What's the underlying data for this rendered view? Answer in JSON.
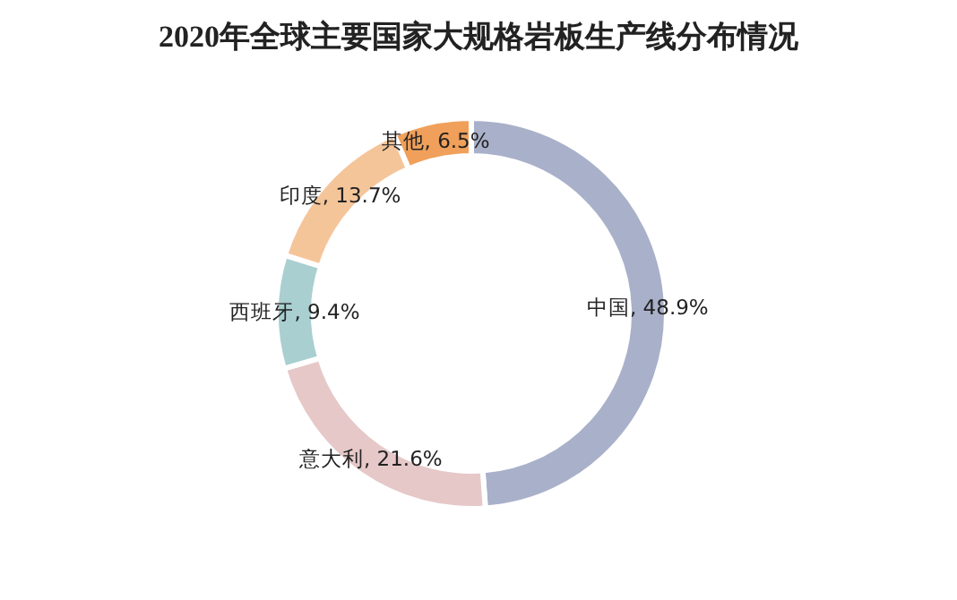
{
  "chart_data": {
    "type": "donut",
    "title": "2020年全球主要国家大规格岩板生产线分布情况",
    "categories": [
      "中国",
      "意大利",
      "西班牙",
      "印度",
      "其他"
    ],
    "values": [
      48.9,
      21.6,
      9.4,
      13.7,
      6.5
    ],
    "colors": [
      "#a9b0c9",
      "#e6c8c8",
      "#a9cfd0",
      "#f5c59a",
      "#f0a05a"
    ],
    "value_labels": [
      ", 48.9%",
      ", 21.6%",
      ", 9.4%",
      ", 13.7%",
      ", 6.5%"
    ]
  }
}
